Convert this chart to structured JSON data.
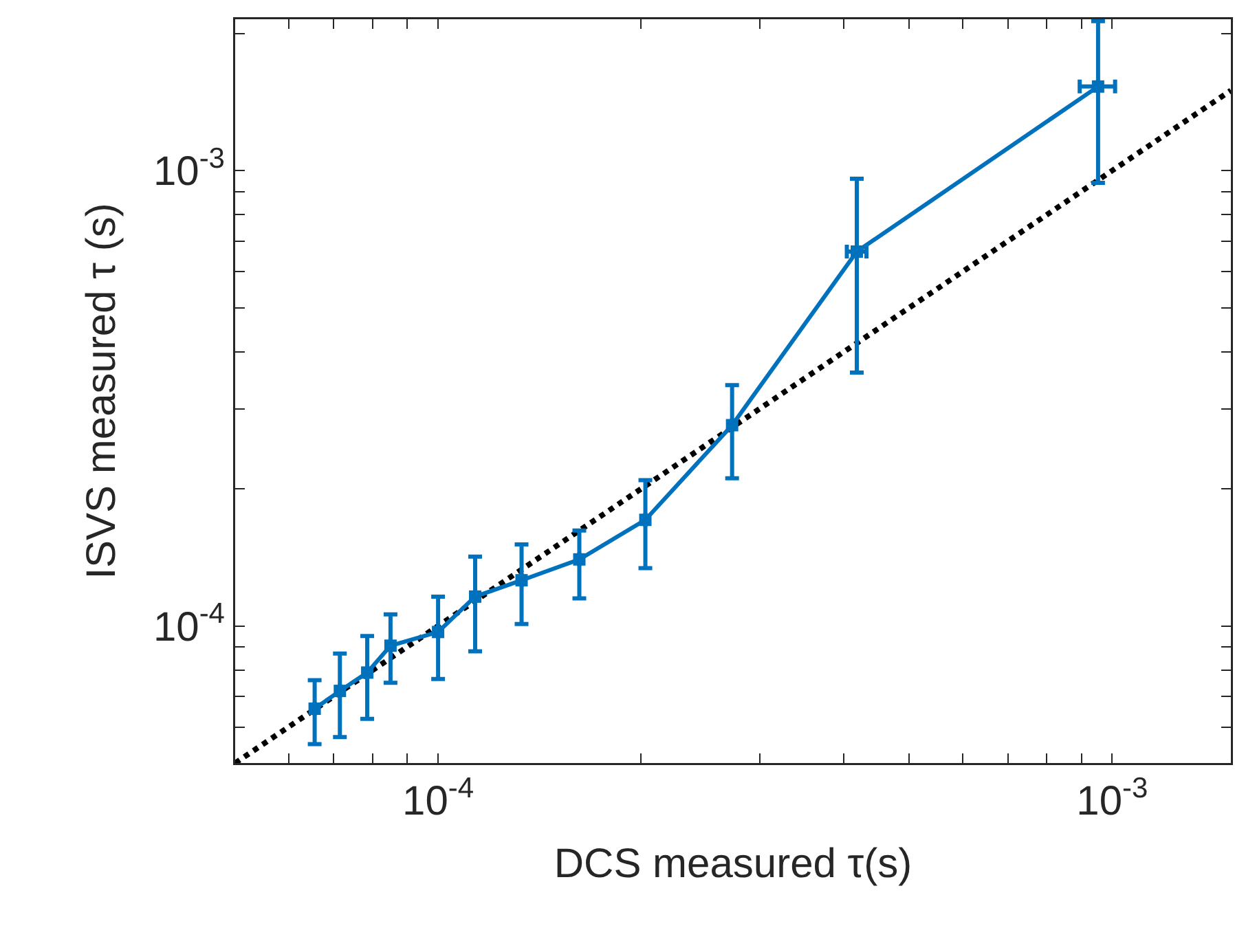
{
  "chart_data": {
    "type": "line",
    "xlabel": "DCS measured τ(s)",
    "ylabel": "ISVS measured τ (s)",
    "log": "xy",
    "grid": false,
    "xlim": [
      5e-05,
      0.0015
    ],
    "ylim": [
      5e-05,
      0.00215
    ],
    "xticks": [
      {
        "value": 6e-05,
        "label": null
      },
      {
        "value": 7e-05,
        "label": null
      },
      {
        "value": 8e-05,
        "label": null
      },
      {
        "value": 9e-05,
        "label": null
      },
      {
        "value": 0.0001,
        "label": "10$^{-4}$"
      },
      {
        "value": 0.0002,
        "label": null
      },
      {
        "value": 0.0003,
        "label": null
      },
      {
        "value": 0.0004,
        "label": null
      },
      {
        "value": 0.0005,
        "label": null
      },
      {
        "value": 0.0006,
        "label": null
      },
      {
        "value": 0.0007,
        "label": null
      },
      {
        "value": 0.0008,
        "label": null
      },
      {
        "value": 0.0009,
        "label": null
      },
      {
        "value": 0.001,
        "label": "10$^{-3}$"
      }
    ],
    "yticks": [
      {
        "value": 6e-05,
        "label": null
      },
      {
        "value": 7e-05,
        "label": null
      },
      {
        "value": 8e-05,
        "label": null
      },
      {
        "value": 9e-05,
        "label": null
      },
      {
        "value": 0.0001,
        "label": "10$^{-4}$"
      },
      {
        "value": 0.0002,
        "label": null
      },
      {
        "value": 0.0003,
        "label": null
      },
      {
        "value": 0.0004,
        "label": null
      },
      {
        "value": 0.0005,
        "label": null
      },
      {
        "value": 0.0006,
        "label": null
      },
      {
        "value": 0.0007,
        "label": null
      },
      {
        "value": 0.0008,
        "label": null
      },
      {
        "value": 0.0009,
        "label": null
      },
      {
        "value": 0.001,
        "label": "10$^{-3}$"
      },
      {
        "value": 0.002,
        "label": null
      }
    ],
    "series": [
      {
        "color": "#000000",
        "line_style": "dotted",
        "marker": "none",
        "x": [
          5e-05,
          0.0015
        ],
        "values": [
          5e-05,
          0.0015
        ]
      },
      {
        "color": "#0072bd",
        "line_style": "solid",
        "marker": "square",
        "x": [
          6.56e-05,
          7.15e-05,
          7.85e-05,
          8.5e-05,
          0.0001,
          0.0001135,
          0.000133,
          0.000162,
          0.000203,
          0.000273,
          0.000418,
          0.000953
        ],
        "values": [
          6.58e-05,
          7.2e-05,
          7.9e-05,
          9.05e-05,
          9.7e-05,
          0.000116,
          0.000126,
          0.00014,
          0.000171,
          0.000276,
          0.000664,
          0.00153
        ],
        "errors": [
          [
            5.5e-05,
            7.6e-05
          ],
          [
            5.7e-05,
            8.7e-05
          ],
          [
            6.25e-05,
            9.5e-05
          ],
          [
            7.5e-05,
            0.000106
          ],
          [
            7.65e-05,
            0.000116
          ],
          [
            8.8e-05,
            0.000142
          ],
          [
            0.000101,
            0.000151
          ],
          [
            0.000115,
            0.000162
          ],
          [
            0.000134,
            0.000209
          ],
          [
            0.000211,
            0.000338
          ],
          [
            0.00036,
            0.00096
          ],
          [
            0.00094,
            0.00213
          ]
        ],
        "xerrors": [
          null,
          null,
          null,
          null,
          null,
          null,
          null,
          null,
          null,
          null,
          [
            0.000404,
            0.000432
          ],
          [
            0.000895,
            0.00101
          ]
        ]
      }
    ]
  }
}
